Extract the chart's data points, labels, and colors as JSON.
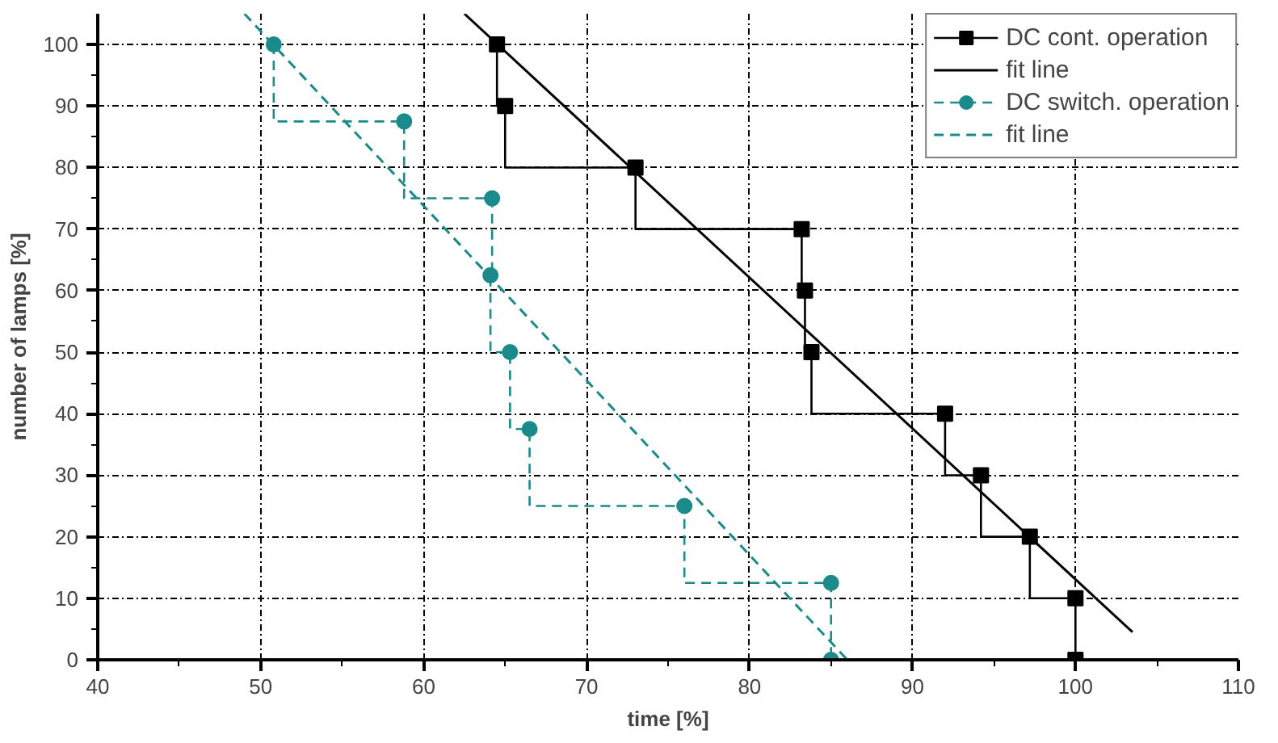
{
  "chart_data": {
    "type": "step",
    "xlabel": "time [%]",
    "ylabel": "number of lamps [%]",
    "xlim": [
      40,
      110
    ],
    "ylim": [
      0,
      105
    ],
    "xticks": [
      40,
      50,
      60,
      70,
      80,
      90,
      100,
      110
    ],
    "yticks": [
      0,
      10,
      20,
      30,
      40,
      50,
      60,
      70,
      80,
      90,
      100
    ],
    "grid": true,
    "legend": "top right",
    "series": [
      {
        "name": "DC cont. operation",
        "color": "#000000",
        "marker": "square",
        "line_style": "solid",
        "x": [
          64.5,
          65,
          73,
          83.2,
          83.4,
          83.8,
          92,
          94.2,
          97.2,
          100,
          100
        ],
        "values": [
          100,
          90,
          80,
          70,
          60,
          50,
          40,
          30,
          20,
          10,
          0
        ]
      },
      {
        "name": "fit line",
        "type": "line",
        "color": "#000000",
        "marker": "none",
        "line_style": "solid",
        "x": [
          62.5,
          103.5
        ],
        "values": [
          105,
          4.5
        ]
      },
      {
        "name": "DC switch. operation",
        "color": "#1a8a8a",
        "marker": "circle",
        "line_style": "dashed",
        "x": [
          50.8,
          58.8,
          64.2,
          64.1,
          65.3,
          66.5,
          76,
          85,
          85
        ],
        "values": [
          100,
          87.5,
          75,
          62.5,
          50,
          37.5,
          25,
          12.5,
          0
        ]
      },
      {
        "name": "fit line",
        "type": "line",
        "color": "#1a8a8a",
        "marker": "none",
        "line_style": "dashed",
        "x": [
          49,
          86
        ],
        "values": [
          105,
          0
        ]
      }
    ]
  }
}
